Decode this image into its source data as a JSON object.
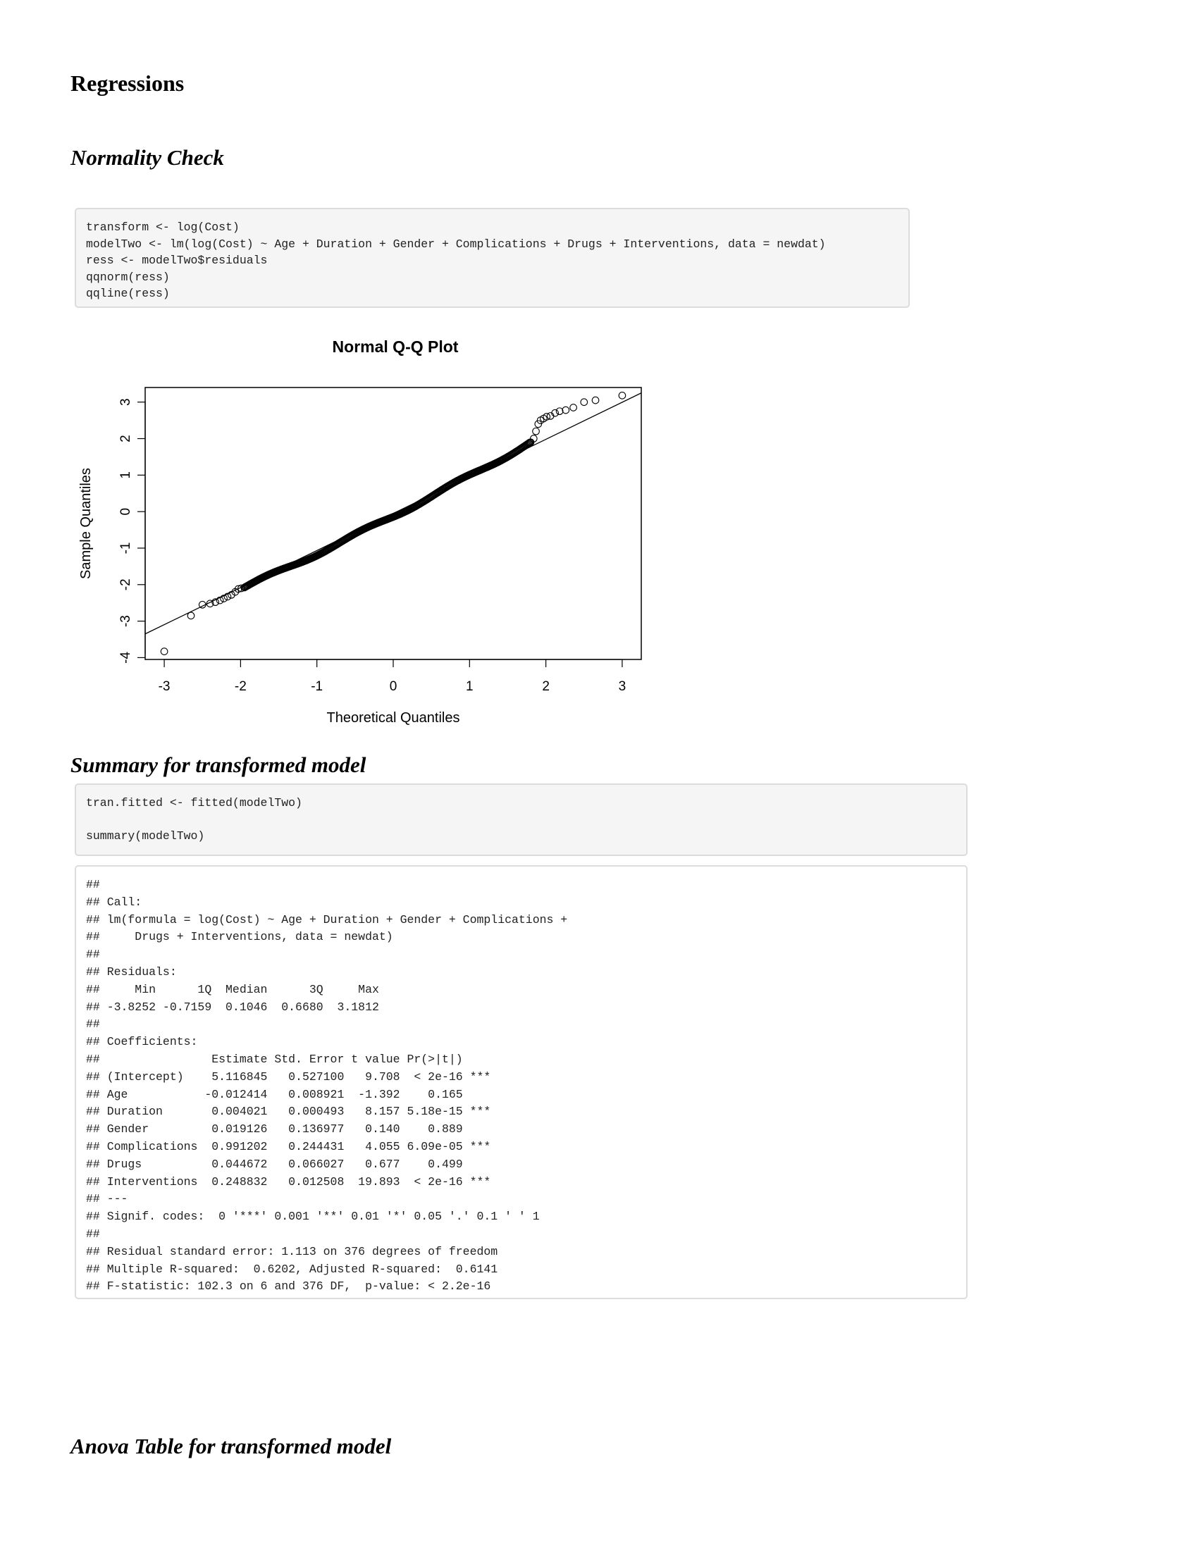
{
  "heading": "Regressions",
  "sections": {
    "normality": "Normality Check",
    "summary": "Summary for transformed model",
    "anova": "Anova Table for transformed model"
  },
  "code_normality": [
    "transform <- log(Cost)",
    "modelTwo <- lm(log(Cost) ~ Age + Duration + Gender + Complications + Drugs + Interventions, data = newdat)",
    "ress <- modelTwo$residuals",
    "qqnorm(ress)",
    "qqline(ress)"
  ],
  "code_summary": [
    "tran.fitted <- fitted(modelTwo)",
    "",
    "summary(modelTwo)"
  ],
  "summary_output": [
    "##",
    "## Call:",
    "## lm(formula = log(Cost) ~ Age + Duration + Gender + Complications +",
    "##     Drugs + Interventions, data = newdat)",
    "##",
    "## Residuals:",
    "##     Min      1Q  Median      3Q     Max",
    "## -3.8252 -0.7159  0.1046  0.6680  3.1812",
    "##",
    "## Coefficients:",
    "##                Estimate Std. Error t value Pr(>|t|)",
    "## (Intercept)    5.116845   0.527100   9.708  < 2e-16 ***",
    "## Age           -0.012414   0.008921  -1.392    0.165",
    "## Duration       0.004021   0.000493   8.157 5.18e-15 ***",
    "## Gender         0.019126   0.136977   0.140    0.889",
    "## Complications  0.991202   0.244431   4.055 6.09e-05 ***",
    "## Drugs          0.044672   0.066027   0.677    0.499",
    "## Interventions  0.248832   0.012508  19.893  < 2e-16 ***",
    "## ---",
    "## Signif. codes:  0 '***' 0.001 '**' 0.01 '*' 0.05 '.' 0.1 ' ' 1",
    "##",
    "## Residual standard error: 1.113 on 376 degrees of freedom",
    "## Multiple R-squared:  0.6202, Adjusted R-squared:  0.6141",
    "## F-statistic: 102.3 on 6 and 376 DF,  p-value: < 2.2e-16"
  ],
  "chart_data": {
    "type": "scatter",
    "title": "Normal Q-Q Plot",
    "xlabel": "Theoretical Quantiles",
    "ylabel": "Sample Quantiles",
    "xlim": [
      -3.25,
      3.25
    ],
    "ylim": [
      -4.05,
      3.4
    ],
    "xticks": [
      -3,
      -2,
      -1,
      0,
      1,
      2,
      3
    ],
    "yticks": [
      -4,
      -3,
      -2,
      -1,
      0,
      1,
      2,
      3
    ],
    "grid": false,
    "reference_line": {
      "x": [
        -3.25,
        3.25
      ],
      "y": [
        -3.35,
        3.25
      ]
    },
    "n_points": 383,
    "series": [
      {
        "x": [
          -3.0,
          -2.65,
          -2.5,
          -2.4,
          -2.33,
          -2.27,
          -2.22,
          -2.17,
          -2.12,
          -2.07,
          -2.03,
          -1.99,
          -1.95,
          1.8,
          1.84,
          1.87,
          1.9,
          1.93,
          1.97,
          2.01,
          2.06,
          2.12,
          2.18,
          2.26,
          2.36,
          2.5,
          2.65,
          3.0
        ],
        "y": [
          -3.83,
          -2.85,
          -2.55,
          -2.52,
          -2.48,
          -2.43,
          -2.38,
          -2.33,
          -2.28,
          -2.2,
          -2.12,
          -2.1,
          -2.08,
          1.9,
          2.0,
          2.2,
          2.4,
          2.5,
          2.55,
          2.6,
          2.62,
          2.7,
          2.75,
          2.78,
          2.85,
          3.0,
          3.05,
          3.18
        ]
      }
    ]
  }
}
